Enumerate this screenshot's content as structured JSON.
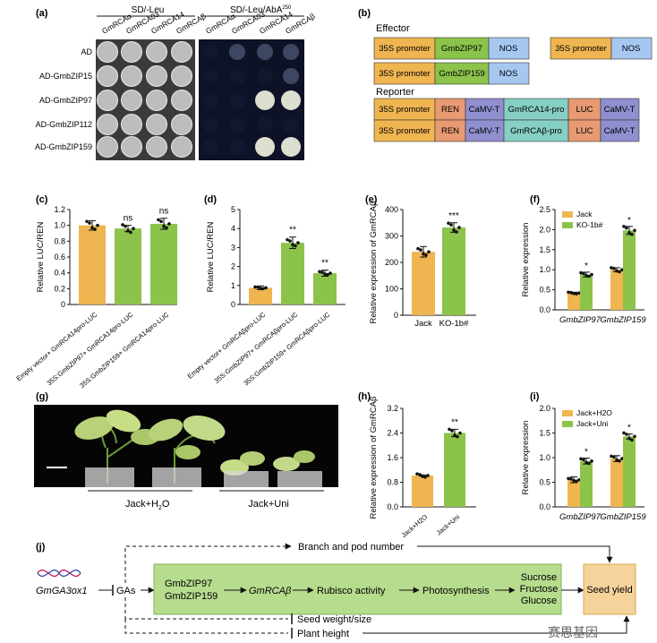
{
  "colors": {
    "orange": "#efb550",
    "green": "#8cc34b",
    "blue": "#a6c7f0",
    "salmon": "#e89a73",
    "purple": "#8f8fd0",
    "teal": "#86cfc4",
    "flow_green": "#b6dc8e",
    "seed_orange": "#f5d39a"
  },
  "panel_labels": {
    "a": "(a)",
    "b": "(b)",
    "c": "(c)",
    "d": "(d)",
    "e": "(e)",
    "f": "(f)",
    "g": "(g)",
    "h": "(h)",
    "i": "(i)",
    "j": "(j)"
  },
  "panel_a": {
    "media": [
      "SD/-Leu",
      "SD/-Leu/AbA"
    ],
    "aba_sup": "250",
    "cols": [
      "GmRCAα",
      "GmRCA03",
      "GmRCA14",
      "GmRCAβ",
      "GmRCAα",
      "GmRCA03",
      "GmRCA14",
      "GmRCAβ"
    ],
    "rows": [
      "AD",
      "AD-GmbZIP15",
      "AD-GmbZIP97",
      "AD-GmbZIP112",
      "AD-GmbZIP159"
    ]
  },
  "panel_b": {
    "effector_title": "Effector",
    "reporter_title": "Reporter",
    "promoter": "35S promoter",
    "nos": "NOS",
    "zip97": "GmbZIP97",
    "zip159": "GmbZIP159",
    "ren": "REN",
    "camv": "CaMV-T",
    "luc": "LUC",
    "rca14_pro": "GmRCA14-pro",
    "rcab_pro": "GmRCAβ-pro"
  },
  "chart_data": [
    {
      "id": "c",
      "type": "bar",
      "ylabel": "Relative LUC/REN",
      "ylim": [
        0,
        1.2
      ],
      "yticks": [
        "0",
        "0.2",
        "0.4",
        "0.6",
        "0.8",
        "1.0",
        "1.2"
      ],
      "categories": [
        "Empty vector+ GmRCA14pro-LUC",
        "35S:GmbZIP97+ GmRCA14pro-LUC",
        "35S:GmbZIP159+ GmRCA14pro-LUC"
      ],
      "values": [
        1.0,
        0.96,
        1.02
      ],
      "errors": [
        0.06,
        0.04,
        0.07
      ],
      "annotations": [
        "",
        "ns",
        "ns"
      ]
    },
    {
      "id": "d",
      "type": "bar",
      "ylabel": "Relative LUC/REN",
      "ylim": [
        0,
        5
      ],
      "yticks": [
        "0",
        "1",
        "2",
        "3",
        "4",
        "5"
      ],
      "categories": [
        "Empty vector+ GmRCAβpro-LUC",
        "35S:GmbZIP97+ GmRCAβpro-LUC",
        "35S:GmbZIP159+ GmRCAβpro-LUC"
      ],
      "values": [
        0.88,
        3.25,
        1.65
      ],
      "errors": [
        0.1,
        0.3,
        0.16
      ],
      "annotations": [
        "",
        "**",
        "**"
      ]
    },
    {
      "id": "e",
      "type": "bar",
      "ylabel": "Relative expression of GmRCAβ",
      "ylim": [
        0,
        400
      ],
      "yticks": [
        "0",
        "100",
        "200",
        "300",
        "400"
      ],
      "categories": [
        "Jack",
        "KO-1b#"
      ],
      "values": [
        240,
        332
      ],
      "errors": [
        20,
        18
      ],
      "annotations": [
        "",
        "***"
      ]
    },
    {
      "id": "f",
      "type": "bar",
      "ylabel": "Relative expression",
      "ylim": [
        0,
        2.5
      ],
      "yticks": [
        "0.0",
        "0.5",
        "1.0",
        "1.5",
        "2.0",
        "2.5"
      ],
      "categories": [
        "GmbZIP97",
        "GmbZIP159"
      ],
      "series": [
        {
          "name": "Jack",
          "values": [
            0.42,
            1.0
          ],
          "errors": [
            0.02,
            0.05
          ]
        },
        {
          "name": "KO-1b#",
          "values": [
            0.88,
            1.98
          ],
          "errors": [
            0.06,
            0.1
          ]
        }
      ],
      "annotations": [
        "*",
        "*"
      ]
    },
    {
      "id": "h",
      "type": "bar",
      "ylabel": "Relative expression of GmRCAβ",
      "ylim": [
        0,
        3.2
      ],
      "yticks": [
        "0.0",
        "0.8",
        "1.6",
        "2.4",
        "3.2"
      ],
      "categories": [
        "Jack+H2O",
        "Jack+Uni"
      ],
      "values": [
        1.02,
        2.4
      ],
      "errors": [
        0.02,
        0.12
      ],
      "annotations": [
        "",
        "**"
      ]
    },
    {
      "id": "i",
      "type": "bar",
      "ylabel": "Relative expression",
      "ylim": [
        0,
        2.0
      ],
      "yticks": [
        "0.0",
        "0.5",
        "1.0",
        "1.5",
        "2.0"
      ],
      "categories": [
        "GmbZIP97",
        "GmbZIP159"
      ],
      "series": [
        {
          "name": "Jack+H2O",
          "values": [
            0.55,
            0.98
          ],
          "errors": [
            0.06,
            0.06
          ]
        },
        {
          "name": "Jack+Uni",
          "values": [
            0.93,
            1.43
          ],
          "errors": [
            0.06,
            0.05
          ]
        }
      ],
      "annotations": [
        "*",
        "*"
      ]
    }
  ],
  "panel_g": {
    "labels": [
      "Jack+H2O",
      "Jack+Uni"
    ]
  },
  "panel_j": {
    "gene": "GmGA3ox1",
    "gas": "GAs",
    "zips": [
      "GmbZIP97",
      "GmbZIP159"
    ],
    "rcab": "GmRCAβ",
    "rubisco": "Rubisco activity",
    "photo": "Photosynthesis",
    "sugars": [
      "Sucrose",
      "Fructose",
      "Glucose"
    ],
    "seed_yield": "Seed yield",
    "branch": "Branch and pod number",
    "seed_weight": "Seed weight/size",
    "plant_height": "Plant height"
  },
  "watermark": "赛思基因"
}
